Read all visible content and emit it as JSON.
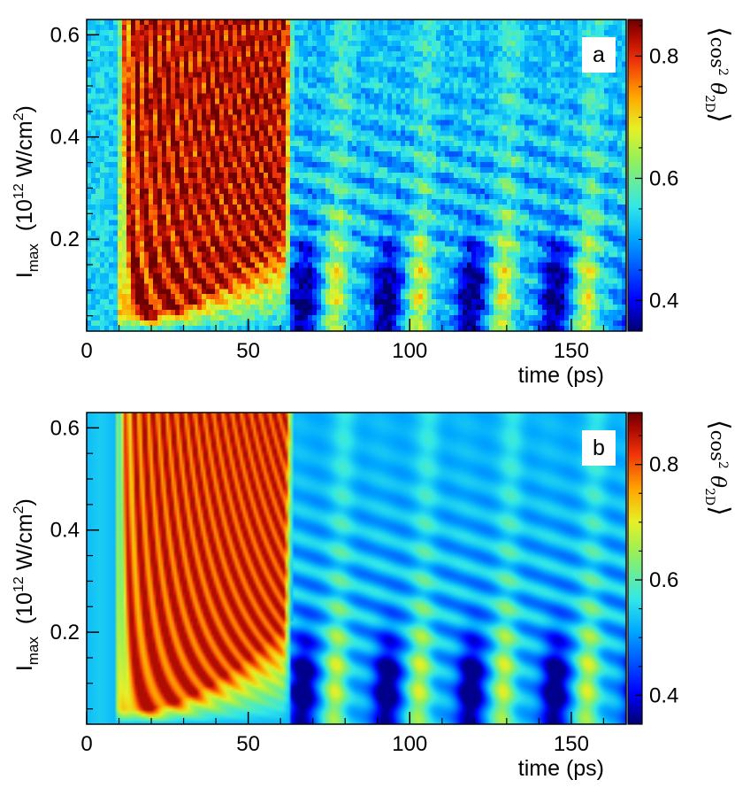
{
  "chart_data": [
    {
      "type": "heatmap",
      "panel_label": "a",
      "xlabel": "time (ps)",
      "ylabel_main": "I",
      "ylabel_sub": "max",
      "ylabel_unit_prefix": "(10",
      "ylabel_unit_exp": "12",
      "ylabel_unit_mid": " W/cm",
      "ylabel_unit_exp2": "2",
      "ylabel_unit_suffix": ")",
      "xlim": [
        0,
        167
      ],
      "ylim": [
        0.02,
        0.63
      ],
      "x_ticks": [
        {
          "value": 0,
          "label": "0"
        },
        {
          "value": 50,
          "label": "50"
        },
        {
          "value": 100,
          "label": "100"
        },
        {
          "value": 150,
          "label": "150"
        }
      ],
      "y_ticks": [
        {
          "value": 0.2,
          "label": "0.2"
        },
        {
          "value": 0.4,
          "label": "0.4"
        },
        {
          "value": 0.6,
          "label": "0.6"
        }
      ],
      "colorbar": {
        "label": "⟨cos² θ2D⟩",
        "label_fn": "cos",
        "label_exp": "2",
        "label_var": "θ",
        "label_sub": "2D",
        "range": [
          0.35,
          0.86
        ],
        "ticks": [
          {
            "value": 0.4,
            "label": "0.4"
          },
          {
            "value": 0.6,
            "label": "0.6"
          },
          {
            "value": 0.8,
            "label": "0.8"
          }
        ]
      },
      "noise": true,
      "grid": false,
      "legend": "none"
    },
    {
      "type": "heatmap",
      "panel_label": "b",
      "xlabel": "time (ps)",
      "ylabel_main": "I",
      "ylabel_sub": "max",
      "ylabel_unit_prefix": "(10",
      "ylabel_unit_exp": "12",
      "ylabel_unit_mid": " W/cm",
      "ylabel_unit_exp2": "2",
      "ylabel_unit_suffix": ")",
      "xlim": [
        0,
        167
      ],
      "ylim": [
        0.02,
        0.63
      ],
      "x_ticks": [
        {
          "value": 0,
          "label": "0"
        },
        {
          "value": 50,
          "label": "50"
        },
        {
          "value": 100,
          "label": "100"
        },
        {
          "value": 150,
          "label": "150"
        }
      ],
      "y_ticks": [
        {
          "value": 0.2,
          "label": "0.2"
        },
        {
          "value": 0.4,
          "label": "0.4"
        },
        {
          "value": 0.6,
          "label": "0.6"
        }
      ],
      "colorbar": {
        "label": "⟨cos² θ2D⟩",
        "label_fn": "cos",
        "label_exp": "2",
        "label_var": "θ",
        "label_sub": "2D",
        "range": [
          0.35,
          0.89
        ],
        "ticks": [
          {
            "value": 0.4,
            "label": "0.4"
          },
          {
            "value": 0.6,
            "label": "0.6"
          },
          {
            "value": 0.8,
            "label": "0.8"
          }
        ]
      },
      "noise": false,
      "grid": false,
      "legend": "none"
    }
  ]
}
